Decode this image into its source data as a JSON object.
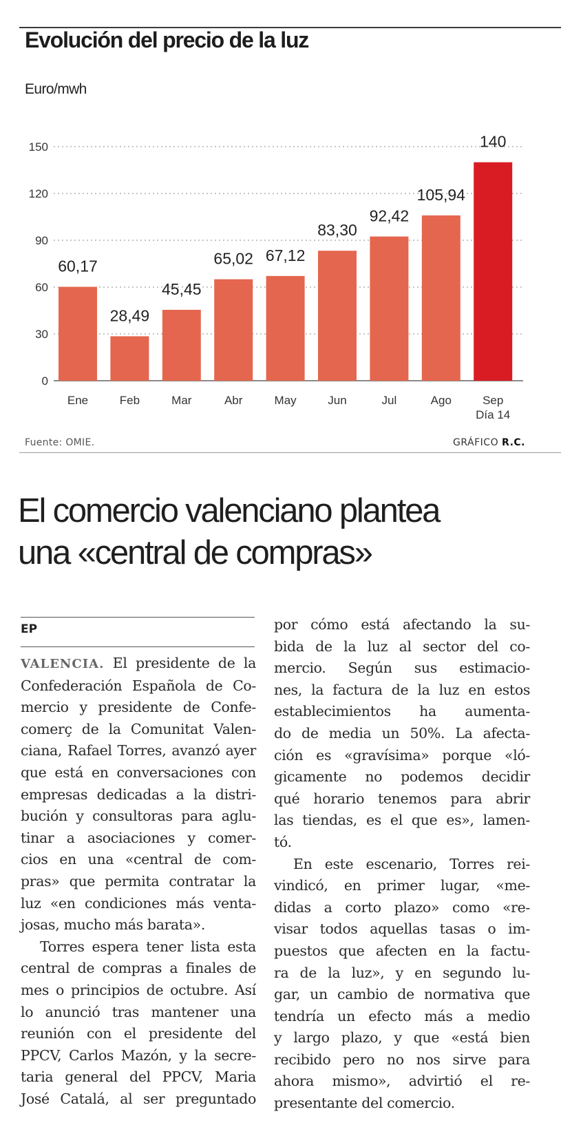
{
  "graphic": {
    "title": "Evolución del precio de la luz",
    "unit": "Euro/mwh",
    "source": "Fuente: OMIE.",
    "credit_prefix": "GRÁFICO",
    "credit_author": "R.C."
  },
  "chart_data": {
    "type": "bar",
    "title": "Evolución del precio de la luz",
    "ylabel": "Euro/mwh",
    "xlabel": "",
    "ylim": [
      0,
      150
    ],
    "yticks": [
      0,
      30,
      60,
      90,
      120,
      150
    ],
    "grid": true,
    "categories": [
      "Ene",
      "Feb",
      "Mar",
      "Abr",
      "May",
      "Jun",
      "Jul",
      "Ago",
      "Sep"
    ],
    "category_sublabels": [
      "",
      "",
      "",
      "",
      "",
      "",
      "",
      "",
      "Día 14"
    ],
    "values": [
      60.17,
      28.49,
      45.45,
      65.02,
      67.12,
      83.3,
      92.42,
      105.94,
      140
    ],
    "value_labels": [
      "60,17",
      "28,49",
      "45,45",
      "65,02",
      "67,12",
      "83,30",
      "92,42",
      "105,94",
      "140"
    ],
    "colors": {
      "default": "#e5664e",
      "highlight": "#d91c24"
    },
    "highlight_index": 8
  },
  "article": {
    "headline_line1": "El comercio valenciano plantea",
    "headline_line2": "una «central de compras»",
    "byline": "EP",
    "dateline": "VALENCIA.",
    "left_column": [
      " El presidente de la",
      "Confederación Española de Co-",
      "mercio y presidente de Confe-",
      "comerç de la Comunitat Valen-",
      "ciana, Rafael Torres, avanzó ayer",
      "que está en conversaciones con",
      "empresas dedicadas a la distri-",
      "bución y consultoras para aglu-",
      "tinar a asociaciones y comer-",
      "cios en una «central de com-",
      "pras» que permita contratar la",
      "luz «en condiciones más venta-",
      "josas, mucho más barata».",
      "Torres espera tener lista esta",
      "central de compras a finales de",
      "mes o principios de octubre. Así",
      "lo anunció tras mantener una",
      "reunión con el presidente del",
      "PPCV, Carlos Mazón, y la secre-",
      "taria general del PPCV, Maria",
      "José Catalá, al ser preguntado"
    ],
    "right_column": [
      "por cómo está afectando la su-",
      "bida de la luz al sector del co-",
      "mercio. Según sus estimacio-",
      "nes, la factura de la luz en estos",
      "establecimientos ha aumenta-",
      "do de media un 50%. La afecta-",
      "ción es «gravísima» porque «ló-",
      "gicamente no podemos decidir",
      "qué horario tenemos para abrir",
      "las tiendas, es el que es», lamen-",
      "tó.",
      "En este escenario, Torres rei-",
      "vindicó, en primer lugar, «me-",
      "didas a corto plazo» como «re-",
      "visar todos aquellas tasas o im-",
      "puestos que afecten en la factu-",
      "ra de la luz», y en segundo lu-",
      "gar, un cambio de normativa que",
      "tendría un efecto más a medio",
      "y largo plazo, y que «está bien",
      "recibido pero no nos sirve para",
      "ahora mismo», advirtió el re-",
      "presentante del comercio."
    ]
  }
}
